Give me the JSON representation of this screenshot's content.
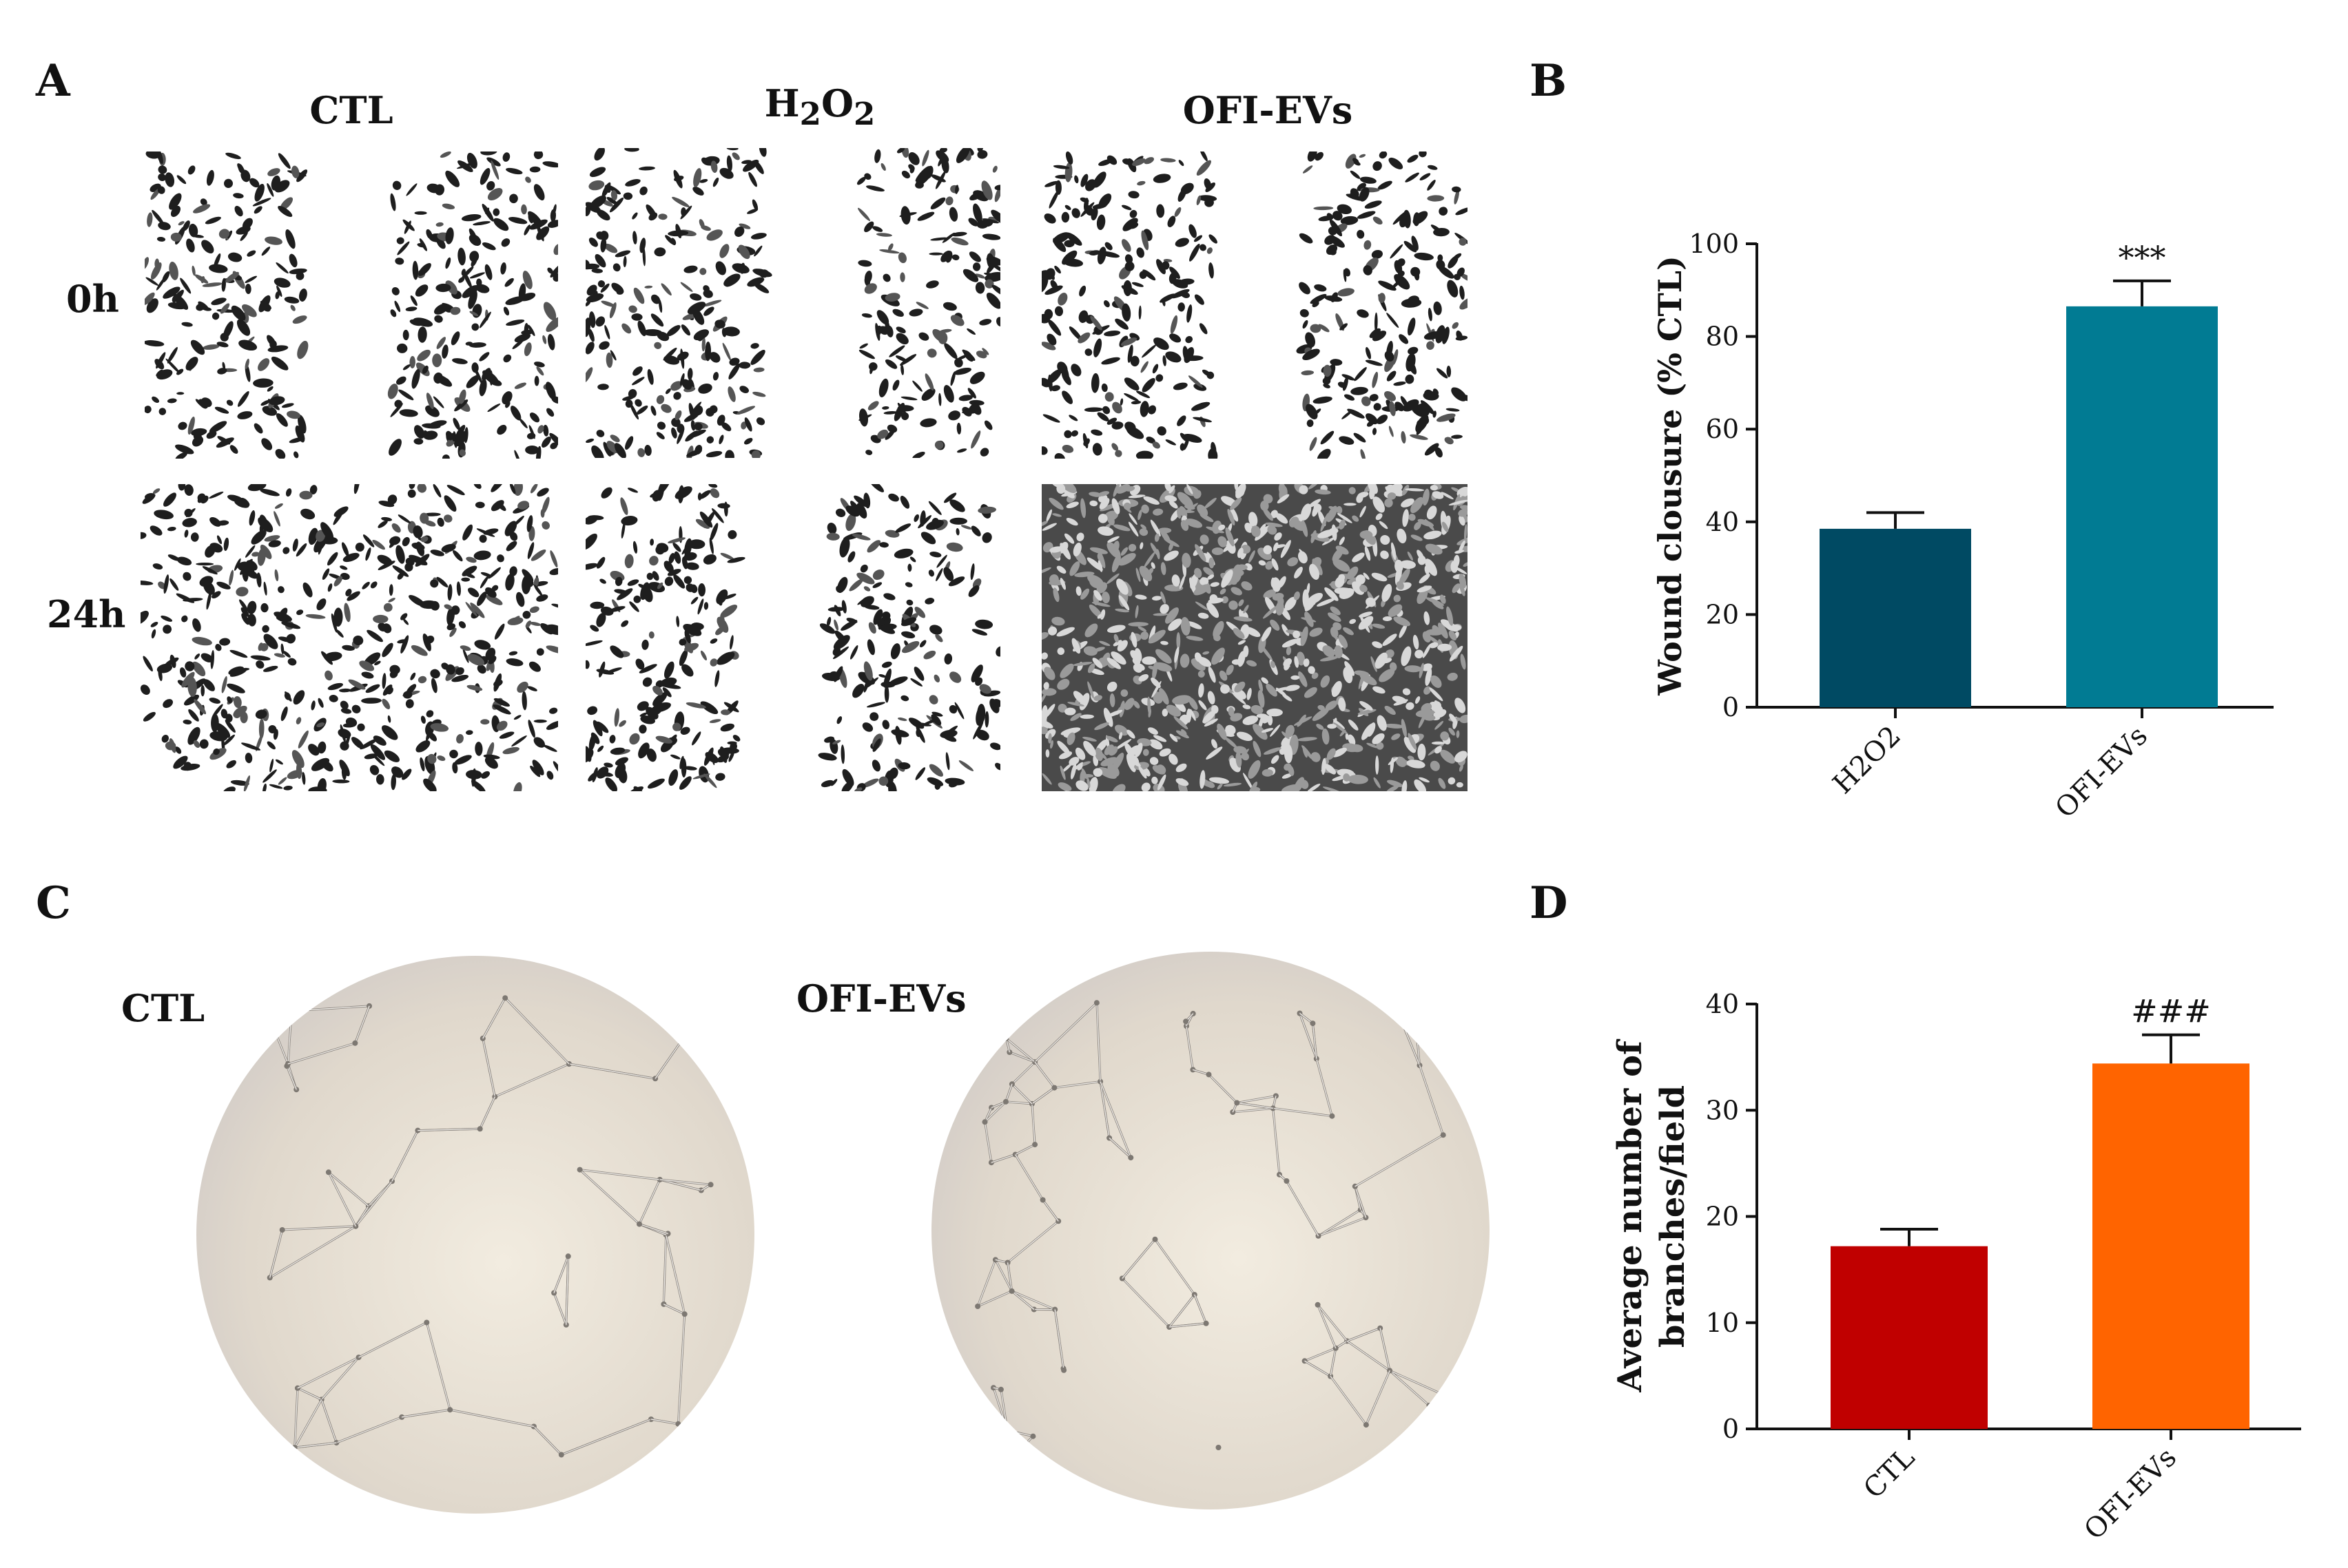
{
  "panels": {
    "A": {
      "letter": "A",
      "columns": [
        "CTL",
        "H2O2",
        "OFI-EVs"
      ],
      "h2o2_html": "H<sub>2</sub>O<sub>2</sub>",
      "rows": [
        "0h",
        "24h"
      ]
    },
    "B": {
      "letter": "B"
    },
    "C": {
      "letter": "C",
      "labels": [
        "CTL",
        "OFI-EVs"
      ]
    },
    "D": {
      "letter": "D"
    }
  },
  "chart_data": [
    {
      "type": "bar",
      "panel": "B",
      "categories": [
        "H2O2",
        "OFI-EVs"
      ],
      "values": [
        38.5,
        86.5
      ],
      "errors": [
        3.5,
        5.5
      ],
      "annotations": [
        "",
        "***"
      ],
      "colors": [
        "#004a63",
        "#017b93"
      ],
      "ylabel": "Wound clousure (% CTL)",
      "ylim": [
        0,
        100
      ],
      "yticks": [
        0,
        20,
        40,
        60,
        80,
        100
      ],
      "grid": false
    },
    {
      "type": "bar",
      "panel": "D",
      "categories": [
        "CTL",
        "OFI-EVs"
      ],
      "values": [
        17.2,
        34.4
      ],
      "errors": [
        1.6,
        2.7
      ],
      "annotations": [
        "",
        "###"
      ],
      "colors": [
        "#c00000",
        "#ff6400"
      ],
      "ylabel_lines": [
        "Average number of",
        "branches/field"
      ],
      "ylim": [
        0,
        40
      ],
      "yticks": [
        0,
        10,
        20,
        30,
        40
      ],
      "grid": false
    }
  ]
}
